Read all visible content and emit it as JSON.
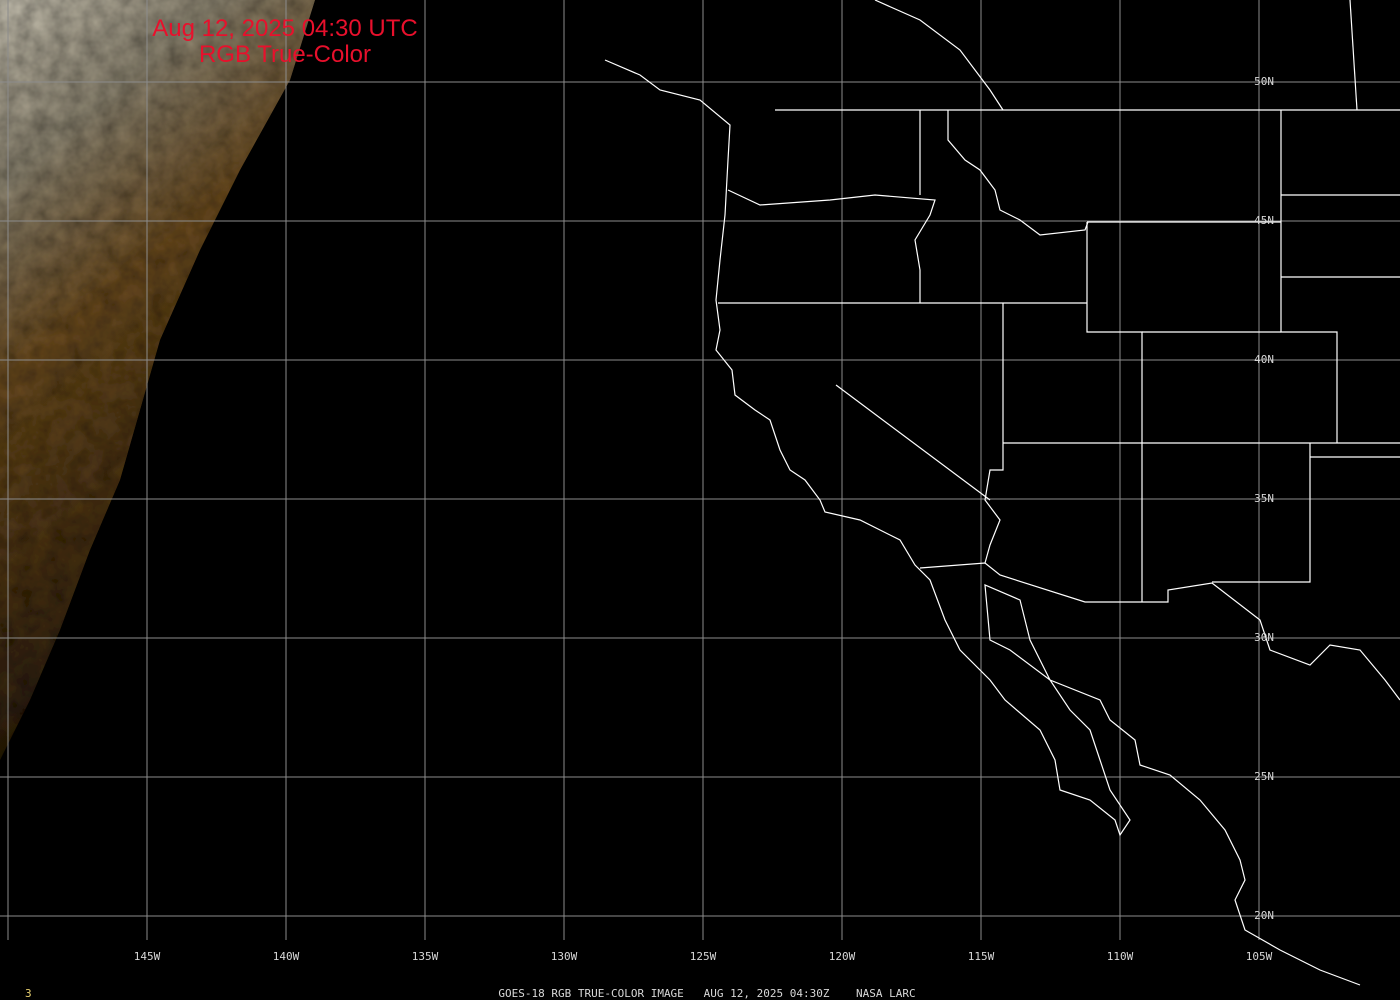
{
  "title": {
    "line1": "Aug 12, 2025 04:30 UTC",
    "line2": "RGB True-Color"
  },
  "footer": {
    "frame_number": "3",
    "caption": "GOES-18 RGB TRUE-COLOR IMAGE   AUG 12, 2025 04:30Z    NASA LARC"
  },
  "longitude_labels": [
    "145W",
    "140W",
    "135W",
    "130W",
    "125W",
    "120W",
    "115W",
    "110W",
    "105W"
  ],
  "latitude_labels": [
    "50N",
    "45N",
    "40N",
    "35N",
    "30N",
    "25N",
    "20N"
  ],
  "colors": {
    "title": "#e8102c",
    "grid": "#8c8c8c",
    "borders": "#ffffff",
    "background": "#000000",
    "frame_number": "#e8d070"
  }
}
